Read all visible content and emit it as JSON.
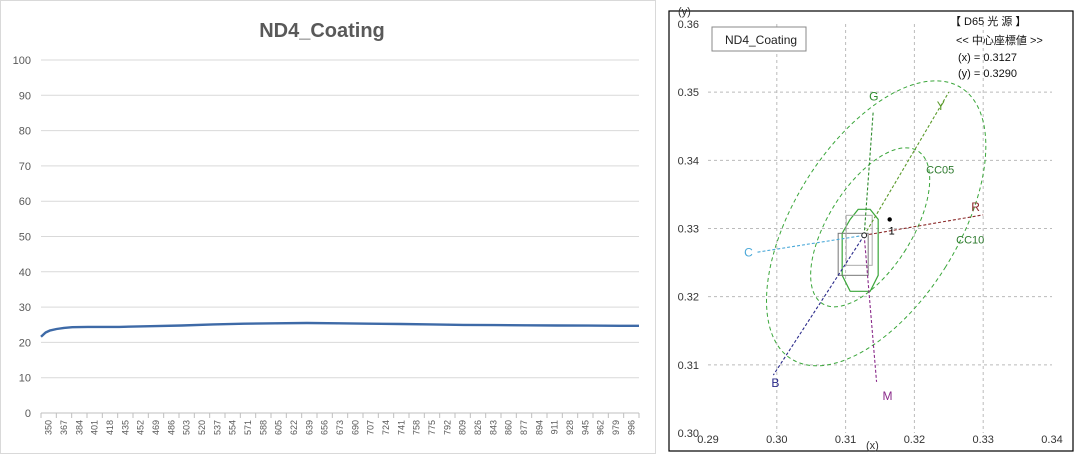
{
  "chart_data": [
    {
      "type": "line",
      "title": "ND4_Coating",
      "xlabel": "",
      "ylabel": "",
      "ylim": [
        0,
        100
      ],
      "yticks": [
        0,
        10,
        20,
        30,
        40,
        50,
        60,
        70,
        80,
        90,
        100
      ],
      "grid": true,
      "x_tick_labels": [
        "350",
        "367",
        "384",
        "401",
        "418",
        "435",
        "452",
        "469",
        "486",
        "503",
        "520",
        "537",
        "554",
        "571",
        "588",
        "605",
        "622",
        "639",
        "656",
        "673",
        "690",
        "707",
        "724",
        "741",
        "758",
        "775",
        "792",
        "809",
        "826",
        "843",
        "860",
        "877",
        "894",
        "911",
        "928",
        "945",
        "962",
        "979",
        "996"
      ],
      "series": [
        {
          "color": "#3e6aa7",
          "points": [
            [
              350,
              21.6
            ],
            [
              355,
              22.8
            ],
            [
              360,
              23.4
            ],
            [
              367,
              23.8
            ],
            [
              375,
              24.1
            ],
            [
              384,
              24.3
            ],
            [
              401,
              24.4
            ],
            [
              435,
              24.4
            ],
            [
              469,
              24.6
            ],
            [
              503,
              24.8
            ],
            [
              537,
              25.1
            ],
            [
              571,
              25.3
            ],
            [
              605,
              25.4
            ],
            [
              639,
              25.5
            ],
            [
              673,
              25.4
            ],
            [
              707,
              25.3
            ],
            [
              741,
              25.2
            ],
            [
              775,
              25.1
            ],
            [
              809,
              24.95
            ],
            [
              843,
              24.9
            ],
            [
              877,
              24.85
            ],
            [
              911,
              24.8
            ],
            [
              945,
              24.75
            ],
            [
              979,
              24.7
            ],
            [
              1000,
              24.7
            ]
          ]
        }
      ]
    },
    {
      "type": "scatter",
      "title": "",
      "xlabel": "(x)",
      "ylabel": "(y)",
      "xlim": [
        0.29,
        0.34
      ],
      "ylim": [
        0.3,
        0.36
      ],
      "xticks": [
        "0.29",
        "0.30",
        "0.31",
        "0.32",
        "0.33",
        "0.34"
      ],
      "yticks": [
        "0.30",
        "0.31",
        "0.32",
        "0.33",
        "0.34",
        "0.35",
        "0.36"
      ],
      "grid": true,
      "legend_box": "ND4_Coating",
      "info": {
        "line1": "【 D65 光 源 】",
        "line2": "<< 中心座標値 >>",
        "line3": "(x) = 0.3127",
        "line4": "(y) = 0.3290"
      },
      "white_point": [
        0.3127,
        0.329
      ],
      "measured_points": [
        {
          "label": "1",
          "x": 0.3135,
          "y": 0.3325
        }
      ],
      "axes_lines": [
        {
          "label": "G",
          "color": "#2e8b2e",
          "to": [
            0.314,
            0.347
          ]
        },
        {
          "label": "Y",
          "color": "#5a9a2a",
          "to": [
            0.325,
            0.35
          ]
        },
        {
          "label": "R",
          "color": "#8b2a2a",
          "to": [
            0.33,
            0.332
          ]
        },
        {
          "label": "C",
          "color": "#4aa8d8",
          "to": [
            0.297,
            0.3265
          ]
        },
        {
          "label": "B",
          "color": "#2a2a8a",
          "to": [
            0.2995,
            0.3085
          ]
        },
        {
          "label": "M",
          "color": "#8a2a8a",
          "to": [
            0.3145,
            0.3075
          ]
        }
      ],
      "ellipse_labels": [
        "CC05",
        "CC10"
      ]
    }
  ]
}
